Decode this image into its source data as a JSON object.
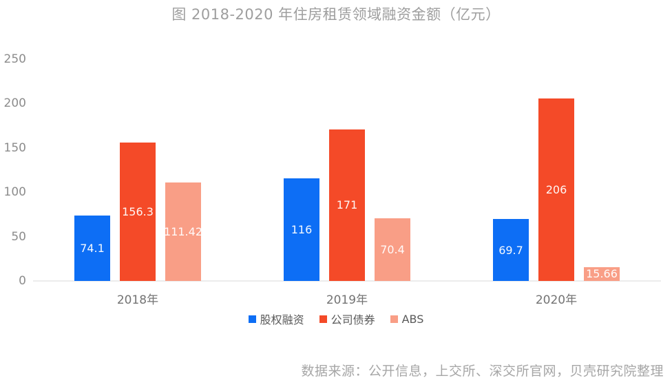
{
  "title": "图 2018-2020 年住房租赁领域融资金额（亿元）",
  "source": "数据来源：公开信息，上交所、深交所官网，贝壳研究院整理",
  "colors": {
    "equity_blue": "#0d6ef5",
    "bond_red": "#f44a28",
    "abs_pink": "#f99e86",
    "axis_line": "#ececec"
  },
  "chart_data": {
    "type": "bar",
    "title": "图 2018-2020 年住房租赁领域融资金额（亿元）",
    "categories": [
      "2018年",
      "2019年",
      "2020年"
    ],
    "series": [
      {
        "key": "equity",
        "name": "股权融资",
        "color": "#0d6ef5",
        "values": [
          74.1,
          116,
          69.7
        ]
      },
      {
        "key": "bond",
        "name": "公司债券",
        "color": "#f44a28",
        "values": [
          156.3,
          171,
          206
        ]
      },
      {
        "key": "abs",
        "name": "ABS",
        "color": "#f99e86",
        "values": [
          111.42,
          70.4,
          15.66
        ]
      }
    ],
    "ylim": [
      0,
      250
    ],
    "yticks": [
      0,
      50,
      100,
      150,
      200,
      250
    ],
    "grid": false,
    "legend_position": "bottom",
    "value_labels": "inside-center"
  }
}
